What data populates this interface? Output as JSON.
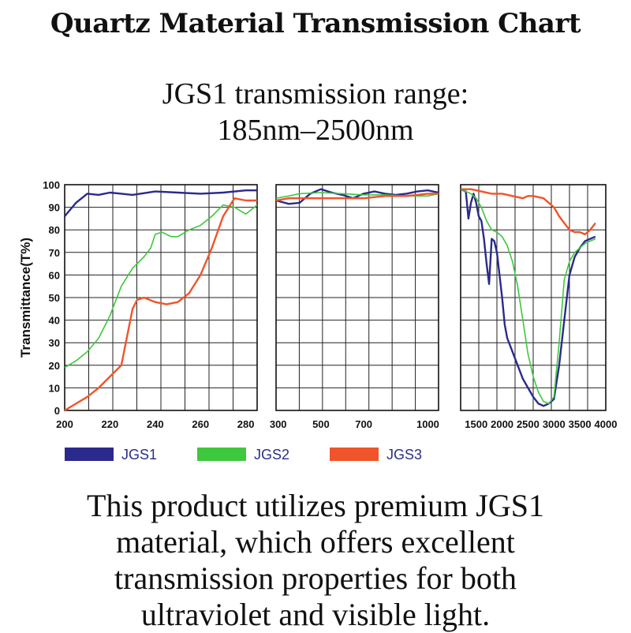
{
  "title": "Quartz Material Transmission Chart",
  "subtitle": {
    "line1": "JGS1 transmission range:",
    "line2": "185nm–2500nm"
  },
  "footer": {
    "lines": [
      "This product utilizes premium JGS1",
      "material, which offers excellent",
      "transmission properties for both",
      "ultraviolet and visible light."
    ]
  },
  "colors": {
    "JGS1": "#2b2a8c",
    "JGS2": "#3ec83e",
    "JGS3": "#f0542a",
    "grid": "#222222"
  },
  "chart_data": {
    "type": "line",
    "ylabel": "Transmittance(T%)",
    "ylim": [
      0,
      100
    ],
    "yticks": [
      "0",
      "10",
      "20",
      "30",
      "40",
      "50",
      "60",
      "70",
      "80",
      "90",
      "100"
    ],
    "grid": true,
    "legend_position": "bottom",
    "panels": [
      {
        "xlim": [
          200,
          285
        ],
        "xticks": [
          {
            "v": 200,
            "label": "200"
          },
          {
            "v": 220,
            "label": "220"
          },
          {
            "v": 240,
            "label": "240"
          },
          {
            "v": 260,
            "label": "260"
          },
          {
            "v": 280,
            "label": "280"
          }
        ],
        "series": [
          {
            "name": "JGS1",
            "x": [
              200,
              205,
              210,
              215,
              220,
              225,
              230,
              240,
              250,
              260,
              270,
              280,
              285
            ],
            "y": [
              86,
              92,
              96,
              95.5,
              96.5,
              96,
              95.5,
              97,
              96.5,
              96,
              96.5,
              97.5,
              97.5
            ]
          },
          {
            "name": "JGS2",
            "x": [
              200,
              205,
              210,
              215,
              220,
              225,
              230,
              235,
              238,
              240,
              243,
              247,
              250,
              255,
              260,
              265,
              270,
              275,
              280,
              285
            ],
            "y": [
              19,
              22,
              26,
              32,
              42,
              55,
              63,
              68,
              72,
              78,
              79,
              77,
              77,
              80,
              82,
              86,
              91,
              90,
              87,
              91
            ]
          },
          {
            "name": "JGS3",
            "x": [
              200,
              205,
              210,
              215,
              220,
              225,
              228,
              230,
              232,
              235,
              240,
              245,
              250,
              255,
              260,
              265,
              270,
              275,
              280,
              285
            ],
            "y": [
              0,
              3,
              6,
              10,
              15,
              20,
              35,
              45,
              49,
              50,
              48,
              47,
              48,
              52,
              60,
              72,
              86,
              94,
              93,
              93
            ]
          }
        ]
      },
      {
        "xlim": [
          290,
          1050
        ],
        "xticks": [
          {
            "v": 300,
            "label": "300"
          },
          {
            "v": 500,
            "label": "500"
          },
          {
            "v": 700,
            "label": "700"
          },
          {
            "v": 1000,
            "label": "1000"
          }
        ],
        "series": [
          {
            "name": "JGS1",
            "x": [
              290,
              350,
              400,
              450,
              500,
              550,
              600,
              650,
              700,
              750,
              800,
              850,
              900,
              950,
              1000,
              1050
            ],
            "y": [
              93,
              91.5,
              92,
              96,
              98,
              96.5,
              95.5,
              94,
              96,
              97,
              96,
              95.5,
              96,
              97,
              97.5,
              96.5
            ]
          },
          {
            "name": "JGS2",
            "x": [
              290,
              350,
              400,
              500,
              600,
              700,
              800,
              900,
              1000,
              1050
            ],
            "y": [
              94,
              95,
              96,
              96.5,
              96,
              95.5,
              95.5,
              95,
              95,
              96
            ]
          },
          {
            "name": "JGS3",
            "x": [
              290,
              350,
              400,
              500,
              600,
              700,
              800,
              900,
              1000,
              1050
            ],
            "y": [
              93,
              94,
              94,
              94,
              94,
              94,
              95,
              95,
              96,
              96
            ]
          }
        ]
      },
      {
        "xlim": [
          1200,
          4000
        ],
        "xticks": [
          {
            "v": 1500,
            "label": "1500"
          },
          {
            "v": 2000,
            "label": "2000"
          },
          {
            "v": 2500,
            "label": "2500"
          },
          {
            "v": 3000,
            "label": "3000"
          },
          {
            "v": 3500,
            "label": "3500"
          },
          {
            "v": 4000,
            "label": "4000"
          }
        ],
        "series": [
          {
            "name": "JGS1",
            "x": [
              1200,
              1300,
              1350,
              1400,
              1450,
              1500,
              1550,
              1600,
              1650,
              1700,
              1750,
              1800,
              1850,
              1900,
              1950,
              2000,
              2050,
              2100,
              2200,
              2300,
              2400,
              2500,
              2600,
              2700,
              2800,
              2900,
              3000,
              3100,
              3200,
              3300,
              3400,
              3500,
              3600,
              3700,
              3800
            ],
            "y": [
              98,
              97,
              85,
              92,
              96,
              92,
              86,
              84,
              76,
              65,
              56,
              76,
              75,
              70,
              60,
              50,
              38,
              32,
              26,
              20,
              14,
              10,
              6,
              3,
              2,
              3,
              5,
              20,
              40,
              60,
              68,
              72,
              75,
              76,
              77
            ]
          },
          {
            "name": "JGS2",
            "x": [
              1200,
              1300,
              1400,
              1500,
              1600,
              1700,
              1800,
              1900,
              2000,
              2100,
              2200,
              2300,
              2400,
              2500,
              2600,
              2700,
              2800,
              2900,
              3000,
              3100,
              3200,
              3300,
              3400,
              3500,
              3600,
              3700,
              3800
            ],
            "y": [
              98,
              97,
              96,
              94,
              90,
              84,
              80,
              79,
              77,
              73,
              66,
              55,
              40,
              25,
              15,
              8,
              4,
              3,
              6,
              30,
              58,
              66,
              70,
              72,
              74,
              75,
              76
            ]
          },
          {
            "name": "JGS3",
            "x": [
              1200,
              1400,
              1600,
              1800,
              2000,
              2200,
              2400,
              2500,
              2600,
              2800,
              2900,
              3000,
              3100,
              3200,
              3300,
              3400,
              3500,
              3600,
              3700,
              3800
            ],
            "y": [
              98,
              98,
              97,
              96,
              96,
              95,
              94,
              95,
              95,
              94,
              92,
              90,
              86,
              83,
              80,
              79,
              79,
              78,
              80,
              83
            ]
          }
        ]
      }
    ]
  }
}
